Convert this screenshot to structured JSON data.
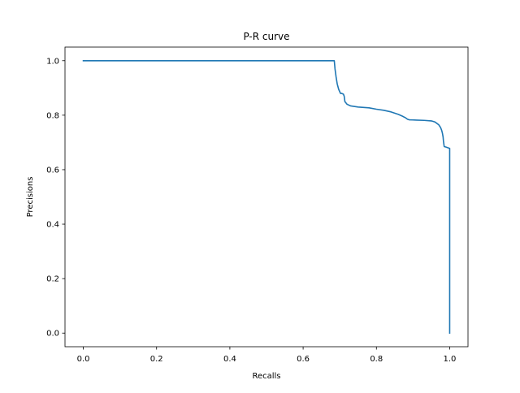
{
  "chart_data": {
    "type": "line",
    "title": "P-R curve",
    "xlabel": "Recalls",
    "ylabel": "Precisions",
    "xlim": [
      -0.05,
      1.05
    ],
    "ylim": [
      -0.05,
      1.05
    ],
    "xticks": [
      0.0,
      0.2,
      0.4,
      0.6,
      0.8,
      1.0
    ],
    "yticks": [
      0.0,
      0.2,
      0.4,
      0.6,
      0.8,
      1.0
    ],
    "xtick_labels": [
      "0.0",
      "0.2",
      "0.4",
      "0.6",
      "0.8",
      "1.0"
    ],
    "ytick_labels": [
      "0.0",
      "0.2",
      "0.4",
      "0.6",
      "0.8",
      "1.0"
    ],
    "grid": false,
    "color": "#1f77b4",
    "series": [
      {
        "x": [
          0.0,
          0.685,
          0.687,
          0.69,
          0.693,
          0.697,
          0.702,
          0.705,
          0.71,
          0.712,
          0.714,
          0.72,
          0.73,
          0.75,
          0.78,
          0.8,
          0.82,
          0.84,
          0.86,
          0.87,
          0.88,
          0.885,
          0.89,
          0.91,
          0.93,
          0.95,
          0.96,
          0.965,
          0.97,
          0.975,
          0.978,
          0.98,
          0.982,
          0.983,
          0.985,
          0.987,
          0.99,
          1.0,
          1.0
        ],
        "y": [
          1.0,
          1.0,
          0.97,
          0.94,
          0.915,
          0.895,
          0.88,
          0.88,
          0.877,
          0.87,
          0.85,
          0.84,
          0.834,
          0.83,
          0.827,
          0.822,
          0.818,
          0.812,
          0.803,
          0.797,
          0.79,
          0.785,
          0.783,
          0.782,
          0.781,
          0.779,
          0.775,
          0.77,
          0.765,
          0.755,
          0.745,
          0.735,
          0.72,
          0.705,
          0.685,
          0.684,
          0.683,
          0.678,
          0.0
        ]
      }
    ]
  }
}
